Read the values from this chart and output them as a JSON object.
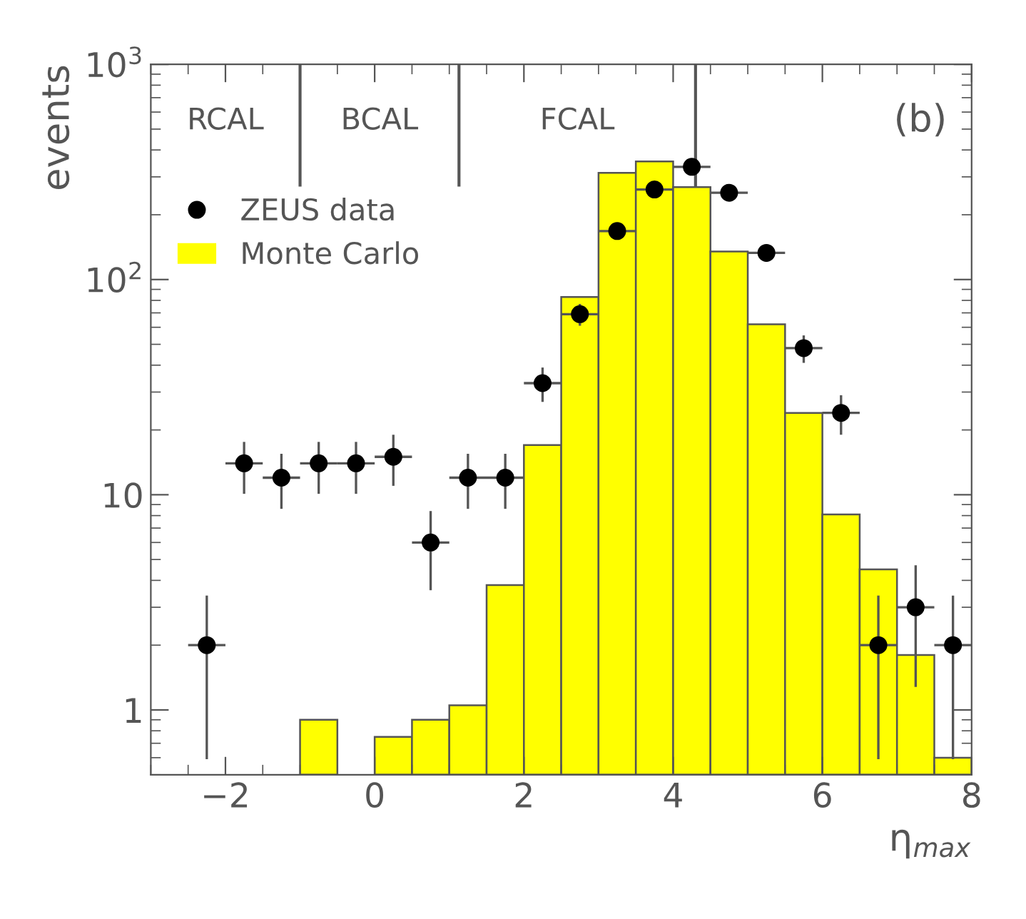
{
  "chart_data": {
    "type": "histogram",
    "xlabel": "η$_{max}$",
    "ylabel": "events",
    "bins": [
      -3,
      -2.5,
      -2,
      -1.5,
      -1,
      -0.5,
      0,
      0.5,
      1,
      1.5,
      2,
      2.5,
      3,
      3.5,
      4,
      4.5,
      5,
      5.5,
      6,
      6.5,
      7,
      7.5,
      8
    ],
    "series": [
      {
        "name": "ZEUS data",
        "type": "scatter",
        "color": "#000000",
        "x": [
          -2.25,
          -1.75,
          -1.25,
          -0.75,
          -0.25,
          0.25,
          0.75,
          1.25,
          1.75,
          2.25,
          2.75,
          3.25,
          3.75,
          4.25,
          4.75,
          5.25,
          5.75,
          6.25,
          6.75,
          7.25,
          7.75
        ],
        "values": [
          2,
          14,
          12,
          14,
          14,
          15,
          6,
          12,
          12,
          33,
          69,
          168,
          262,
          334,
          253,
          133,
          48,
          24,
          2,
          3,
          2
        ],
        "errors": [
          [
            0.59,
            3.4
          ],
          [
            10.1,
            17.6
          ],
          [
            8.6,
            15.5
          ],
          [
            10.1,
            17.6
          ],
          [
            10.1,
            17.6
          ],
          [
            11,
            19
          ],
          [
            3.6,
            8.4
          ],
          [
            8.6,
            15.5
          ],
          [
            8.6,
            15.5
          ],
          [
            27,
            39
          ],
          [
            61,
            77
          ],
          [
            155,
            181
          ],
          [
            246,
            278
          ],
          [
            316,
            352
          ],
          [
            237,
            269
          ],
          [
            121,
            145
          ],
          [
            41,
            55
          ],
          [
            19,
            29
          ],
          [
            0.59,
            3.4
          ],
          [
            1.28,
            4.7
          ],
          [
            0.59,
            3.4
          ]
        ],
        "xerrors": [
          0.25,
          0.25,
          0.25,
          0.25,
          0.25,
          0.25,
          0.25,
          0.25,
          0.25,
          0.25,
          0.25,
          0.25,
          0.25,
          0.25,
          0.25,
          0.25,
          0.25,
          0.25,
          0.25,
          0.25,
          0.25
        ]
      },
      {
        "name": "Monte Carlo",
        "color": "#ffff00",
        "values": [
          null,
          null,
          null,
          null,
          0.9,
          null,
          0.75,
          0.9,
          1.05,
          3.8,
          17,
          83,
          313,
          354,
          269,
          135,
          62,
          24,
          8.1,
          4.5,
          1.8,
          0.6
        ]
      }
    ],
    "ref_lines": [
      {
        "axis": "x",
        "value": -1
      },
      {
        "axis": "x",
        "value": 1.13
      },
      {
        "axis": "x",
        "value": 4.3
      }
    ],
    "annotations": [
      "RCAL",
      "BCAL",
      "FCAL",
      "(b)"
    ],
    "log": "y",
    "xlim": [
      -3,
      8
    ],
    "ylim": [
      0.5,
      1000
    ],
    "xticks": [
      {
        "value": -2,
        "label": "−2"
      },
      0,
      2,
      4,
      6,
      8
    ],
    "yticks": [
      1,
      10,
      {
        "value": 100,
        "label": "10$^{2}$"
      },
      {
        "value": 1000,
        "label": "10$^{3}$"
      }
    ],
    "grid": false,
    "legend": "top left",
    "marker": "circle"
  }
}
